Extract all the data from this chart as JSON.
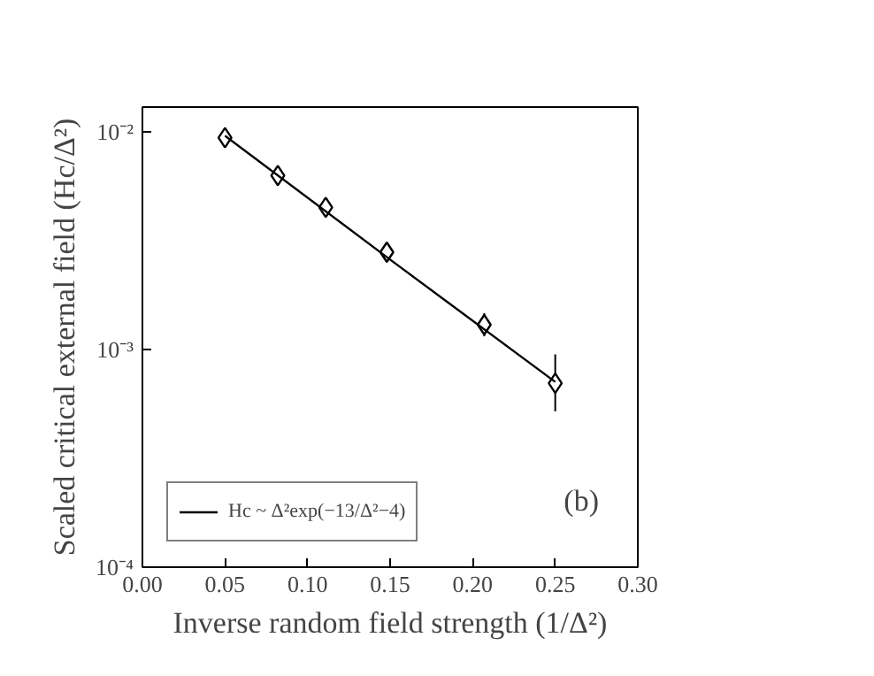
{
  "chart_data": {
    "type": "scatter",
    "xlabel": "Inverse random field strength (1/Δ²)",
    "ylabel": "Scaled critical external field (Hc/Δ²)",
    "series": [
      {
        "color": "#000000",
        "marker": "diamond",
        "x": [
          0.05,
          0.082,
          0.111,
          0.148,
          0.207,
          0.25
        ],
        "values": [
          0.0094,
          0.0063,
          0.0045,
          0.0028,
          0.0013,
          0.0007
        ],
        "errors": [
          null,
          null,
          null,
          null,
          [
            0.00115,
            0.00147
          ],
          [
            0.00052,
            0.00095
          ]
        ]
      },
      {
        "type": "line",
        "name": "Hc ~ Δ²exp(−13/Δ²−4)",
        "color": "#000000",
        "marker": "none",
        "x": [
          0.05,
          0.15,
          0.25
        ],
        "values": [
          0.0096,
          0.00259,
          0.00071
        ]
      }
    ],
    "xlim": [
      0,
      0.3
    ],
    "xticks": [
      {
        "value": 0,
        "label": "0.00"
      },
      0.05,
      {
        "value": 0.1,
        "label": "0.10"
      },
      0.15,
      {
        "value": 0.2,
        "label": "0.20"
      },
      0.25,
      {
        "value": 0.3,
        "label": "0.30"
      }
    ],
    "ylim": [
      0.0001,
      0.013
    ],
    "yticks": [
      {
        "value": 0.0001,
        "label": "10⁻⁴"
      },
      {
        "value": 0.001,
        "label": "10⁻³"
      },
      {
        "value": 0.01,
        "label": "10⁻²"
      }
    ],
    "log": "y",
    "grid": false,
    "legend": "bottom left",
    "annotations": [
      "(b)"
    ]
  }
}
